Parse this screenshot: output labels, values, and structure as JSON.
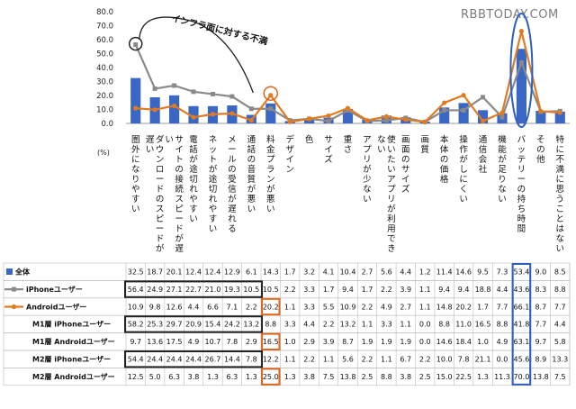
{
  "watermark": "RBBTODAY.COM",
  "annotation": "インフラ面に対する不満",
  "chart_data": {
    "type": "bar+line",
    "unit": "(%)",
    "ylim": [
      0,
      80
    ],
    "yticks": [
      "0.0",
      "10.0",
      "20.0",
      "30.0",
      "40.0",
      "50.0",
      "60.0",
      "70.0",
      "80.0"
    ],
    "categories": [
      "圏外になりやすい",
      "ダウンロードのスピードが遅い",
      "サイトの接続スピードが遅い",
      "電話が途切れやすい",
      "ネットが途切れやすい",
      "メールの受信が遅れる",
      "通話の音質が悪い",
      "料金プランが悪い",
      "デザイン",
      "色",
      "サイズ",
      "重さ",
      "アプリが少ない",
      "使いたいアプリが利用できない",
      "画面のサイズ",
      "画質",
      "本体の価格",
      "操作がしにくい",
      "通信会社",
      "機能が足りない",
      "バッテリーの持ち時間",
      "その他",
      "特に不満に思うことはない"
    ],
    "series": [
      {
        "name": "全体",
        "color": "#3a66c4",
        "kind": "bar",
        "values": [
          32.5,
          18.7,
          20.1,
          12.4,
          12.4,
          12.9,
          6.1,
          14.3,
          1.7,
          3.2,
          4.1,
          10.4,
          2.7,
          5.6,
          4.4,
          1.2,
          11.4,
          14.6,
          9.5,
          7.3,
          53.4,
          9.0,
          8.5
        ]
      },
      {
        "name": "iPhoneユーザー",
        "color": "#8a8a8a",
        "kind": "line",
        "values": [
          56.4,
          24.9,
          27.1,
          22.7,
          21.0,
          19.3,
          10.5,
          10.5,
          2.2,
          3.3,
          1.7,
          9.4,
          1.7,
          2.2,
          3.9,
          1.1,
          9.4,
          9.4,
          18.8,
          4.4,
          43.6,
          8.3,
          8.8
        ]
      },
      {
        "name": "Androidユーザー",
        "color": "#e07b22",
        "kind": "line",
        "values": [
          10.9,
          9.8,
          12.6,
          4.4,
          6.6,
          7.1,
          2.2,
          20.2,
          1.1,
          3.3,
          5.5,
          10.9,
          2.2,
          4.9,
          2.7,
          1.1,
          14.8,
          20.2,
          1.7,
          7.7,
          66.1,
          8.7,
          7.7
        ]
      },
      {
        "name": "M1層 iPhoneユーザー",
        "kind": "table",
        "values": [
          58.2,
          25.3,
          29.7,
          20.9,
          15.4,
          24.2,
          13.2,
          8.8,
          3.3,
          4.4,
          2.2,
          13.2,
          1.1,
          3.3,
          1.1,
          0.0,
          8.8,
          11.0,
          16.5,
          8.8,
          41.8,
          7.7,
          4.4
        ]
      },
      {
        "name": "M1層 Androidユーザー",
        "kind": "table",
        "values": [
          9.7,
          13.6,
          17.5,
          4.9,
          10.7,
          7.8,
          2.9,
          16.5,
          1.0,
          2.9,
          3.9,
          8.7,
          1.9,
          1.9,
          1.9,
          0.0,
          14.6,
          18.4,
          1.0,
          4.9,
          63.1,
          9.7,
          5.8
        ]
      },
      {
        "name": "M2層 iPhoneユーザー",
        "kind": "table",
        "values": [
          54.4,
          24.4,
          24.4,
          24.4,
          26.7,
          14.4,
          7.8,
          12.2,
          1.1,
          2.2,
          1.1,
          5.6,
          2.2,
          1.1,
          6.7,
          2.2,
          10.0,
          7.8,
          21.1,
          0.0,
          45.6,
          8.9,
          13.3
        ]
      },
      {
        "name": "M2層 Androidユーザー",
        "kind": "table",
        "values": [
          12.5,
          5.0,
          6.3,
          3.8,
          1.3,
          6.3,
          1.3,
          25.0,
          1.3,
          3.8,
          7.5,
          13.8,
          2.5,
          8.8,
          3.8,
          2.5,
          15.0,
          22.5,
          1.3,
          11.3,
          70.0,
          13.8,
          7.5
        ]
      }
    ]
  },
  "colors": {
    "highlight_dark": "#222222",
    "highlight_orange": "#e0641e",
    "highlight_blue": "#2e5fbf"
  }
}
